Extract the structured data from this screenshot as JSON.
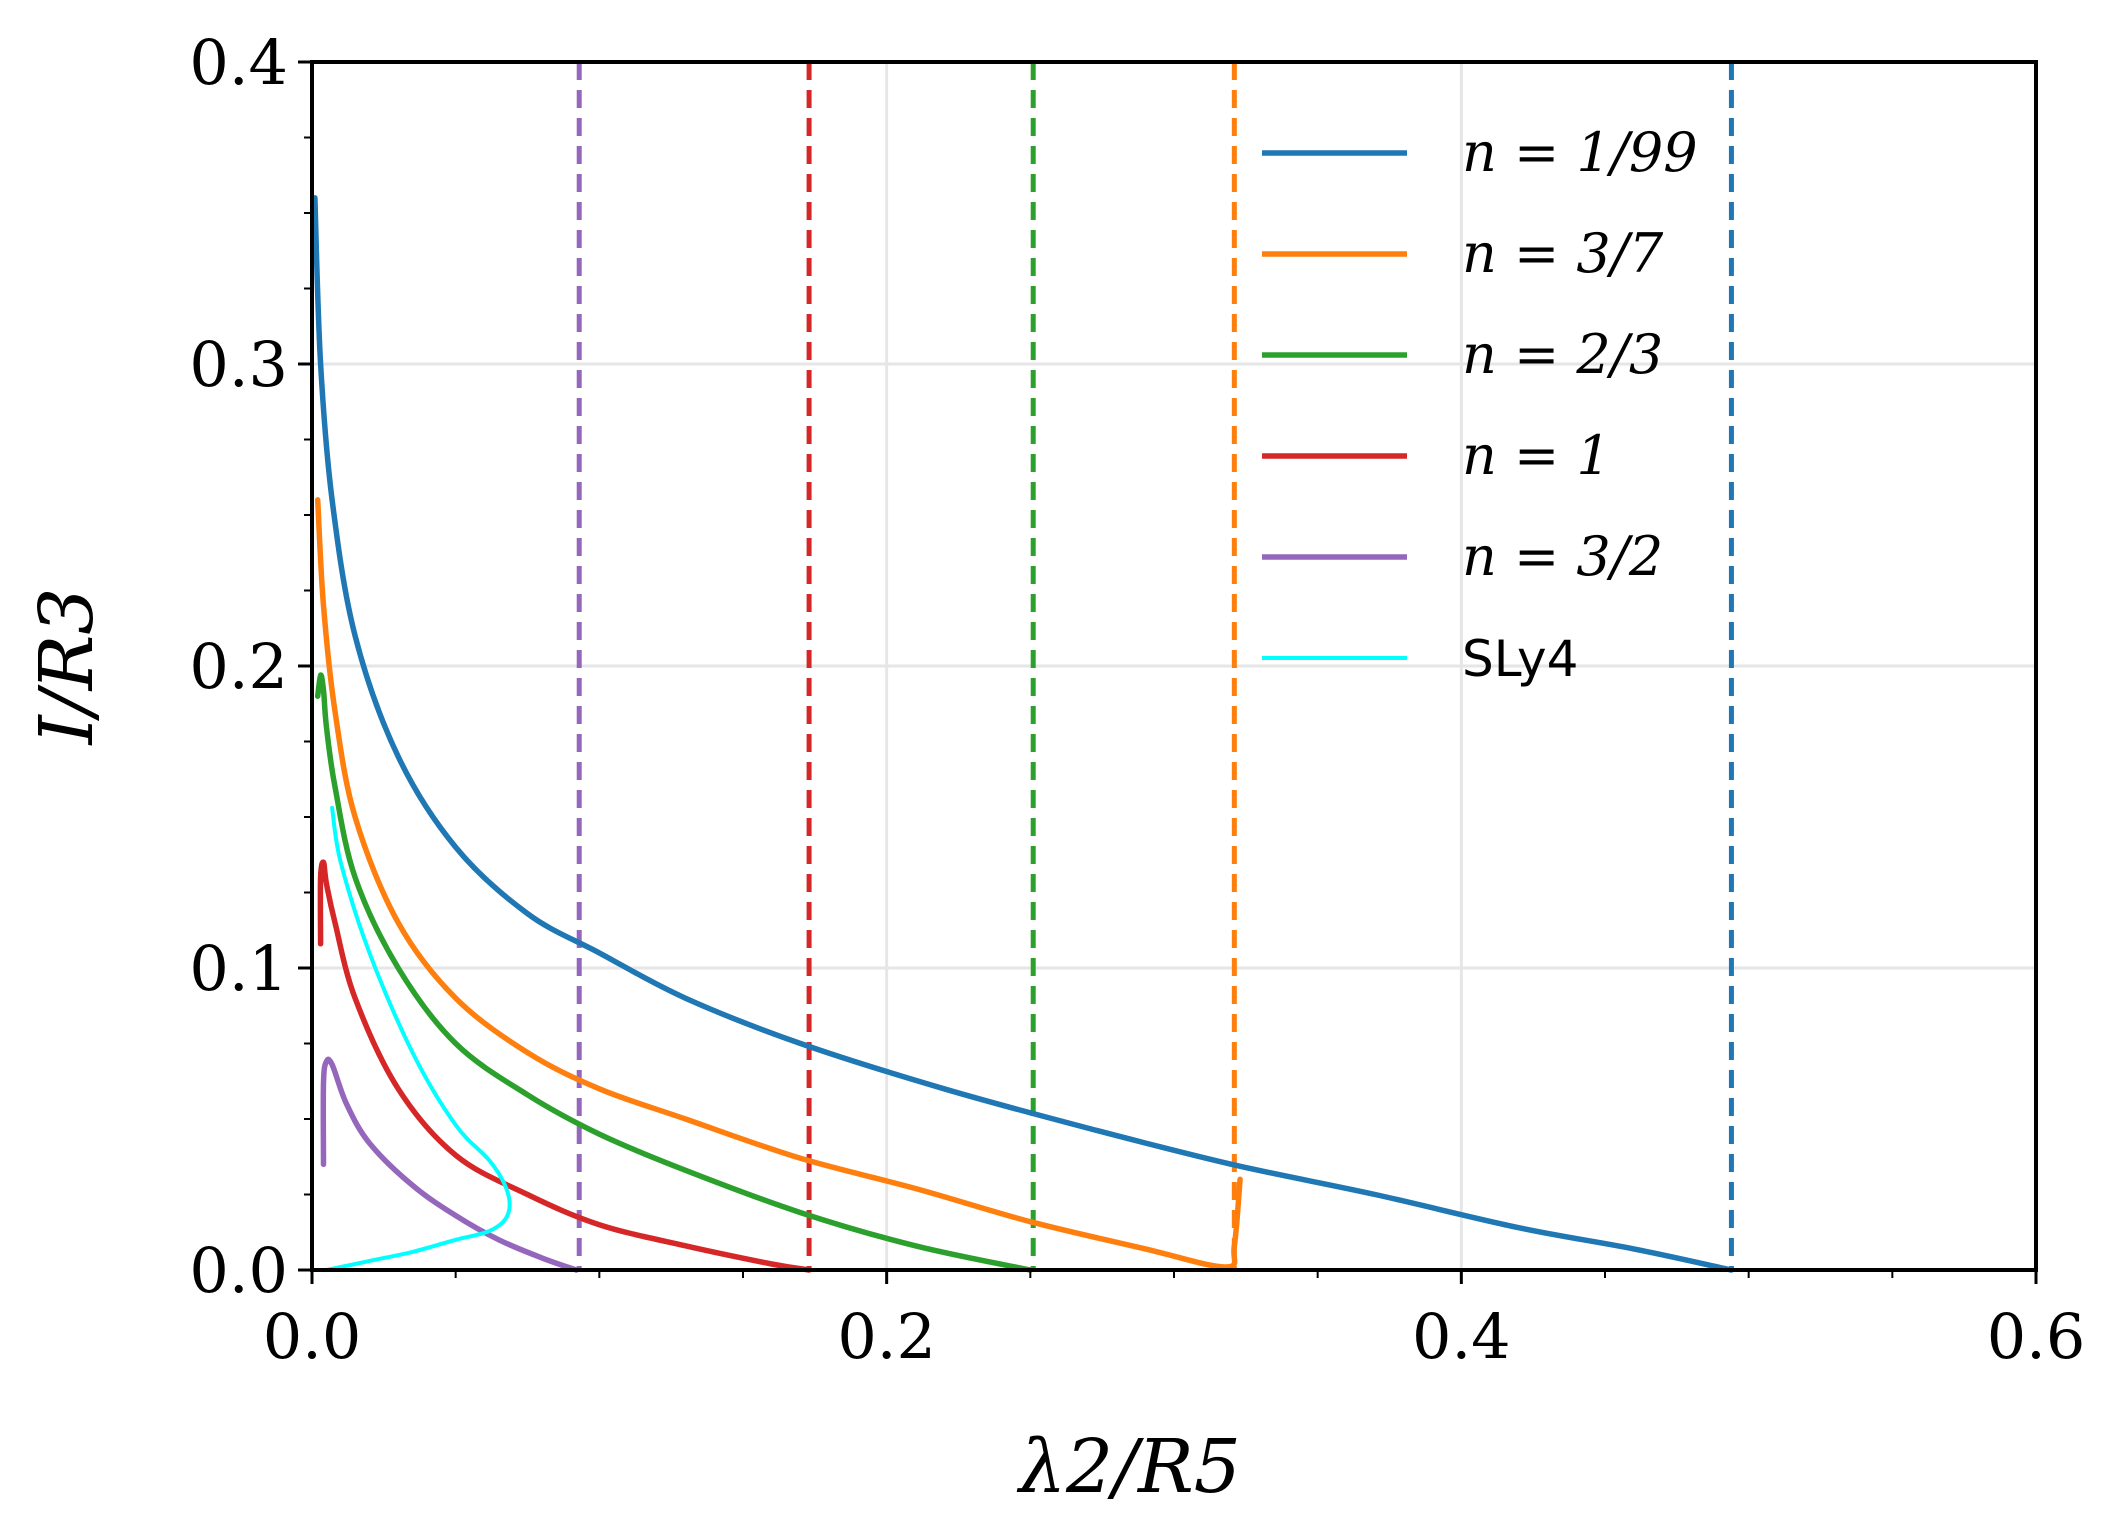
{
  "chart_data": {
    "type": "line",
    "title": "",
    "xlabel": "λ2/R5",
    "ylabel": "I/R3",
    "xlim": [
      0.0,
      0.6
    ],
    "ylim": [
      0.0,
      0.4
    ],
    "xticks": [
      "0.0",
      "0.2",
      "0.4",
      "0.6"
    ],
    "yticks": [
      "0.0",
      "0.1",
      "0.2",
      "0.3",
      "0.4"
    ],
    "grid": true,
    "legend_position": "top-right",
    "series": [
      {
        "name": "n = 1/99",
        "color": "#1f77b4",
        "x": [
          0.001,
          0.003,
          0.007,
          0.015,
          0.03,
          0.05,
          0.075,
          0.1,
          0.13,
          0.17,
          0.22,
          0.27,
          0.32,
          0.37,
          0.42,
          0.46,
          0.494
        ],
        "y": [
          0.355,
          0.3,
          0.255,
          0.21,
          0.17,
          0.14,
          0.118,
          0.105,
          0.09,
          0.075,
          0.06,
          0.047,
          0.035,
          0.025,
          0.014,
          0.007,
          0.0
        ]
      },
      {
        "name": "n = 3/7",
        "color": "#ff7f0e",
        "x": [
          0.002,
          0.004,
          0.008,
          0.015,
          0.03,
          0.05,
          0.075,
          0.1,
          0.13,
          0.17,
          0.21,
          0.25,
          0.29,
          0.318,
          0.321,
          0.323
        ],
        "y": [
          0.255,
          0.22,
          0.185,
          0.15,
          0.115,
          0.09,
          0.072,
          0.06,
          0.05,
          0.037,
          0.027,
          0.016,
          0.007,
          0.001,
          0.008,
          0.03
        ]
      },
      {
        "name": "n = 2/3",
        "color": "#2ca02c",
        "x": [
          0.002,
          0.003,
          0.004,
          0.005,
          0.008,
          0.015,
          0.03,
          0.05,
          0.075,
          0.1,
          0.13,
          0.17,
          0.21,
          0.25
        ],
        "y": [
          0.19,
          0.197,
          0.192,
          0.18,
          0.16,
          0.13,
          0.1,
          0.075,
          0.058,
          0.045,
          0.033,
          0.019,
          0.008,
          0.0
        ]
      },
      {
        "name": "n = 1",
        "color": "#d62728",
        "x": [
          0.003,
          0.003,
          0.004,
          0.005,
          0.008,
          0.015,
          0.03,
          0.05,
          0.075,
          0.1,
          0.13,
          0.16,
          0.173
        ],
        "y": [
          0.108,
          0.13,
          0.135,
          0.128,
          0.115,
          0.09,
          0.06,
          0.038,
          0.025,
          0.015,
          0.008,
          0.002,
          0.0
        ]
      },
      {
        "name": "n = 3/2",
        "color": "#9467bd",
        "x": [
          0.004,
          0.004,
          0.005,
          0.007,
          0.012,
          0.02,
          0.035,
          0.05,
          0.065,
          0.08,
          0.092
        ],
        "y": [
          0.035,
          0.062,
          0.069,
          0.068,
          0.055,
          0.042,
          0.028,
          0.018,
          0.01,
          0.004,
          0.0
        ]
      },
      {
        "name": "SLy4",
        "color": "#00ffff",
        "x": [
          0.007,
          0.01,
          0.02,
          0.035,
          0.05,
          0.062,
          0.068,
          0.068,
          0.062,
          0.05,
          0.035,
          0.02,
          0.005
        ],
        "y": [
          0.153,
          0.135,
          0.105,
          0.072,
          0.048,
          0.036,
          0.026,
          0.018,
          0.013,
          0.01,
          0.006,
          0.003,
          0.0
        ]
      }
    ],
    "vertical_dashed_lines": [
      {
        "x": 0.093,
        "color": "#9467bd"
      },
      {
        "x": 0.173,
        "color": "#d62728"
      },
      {
        "x": 0.251,
        "color": "#2ca02c"
      },
      {
        "x": 0.321,
        "color": "#ff7f0e"
      },
      {
        "x": 0.494,
        "color": "#1f77b4"
      }
    ]
  }
}
